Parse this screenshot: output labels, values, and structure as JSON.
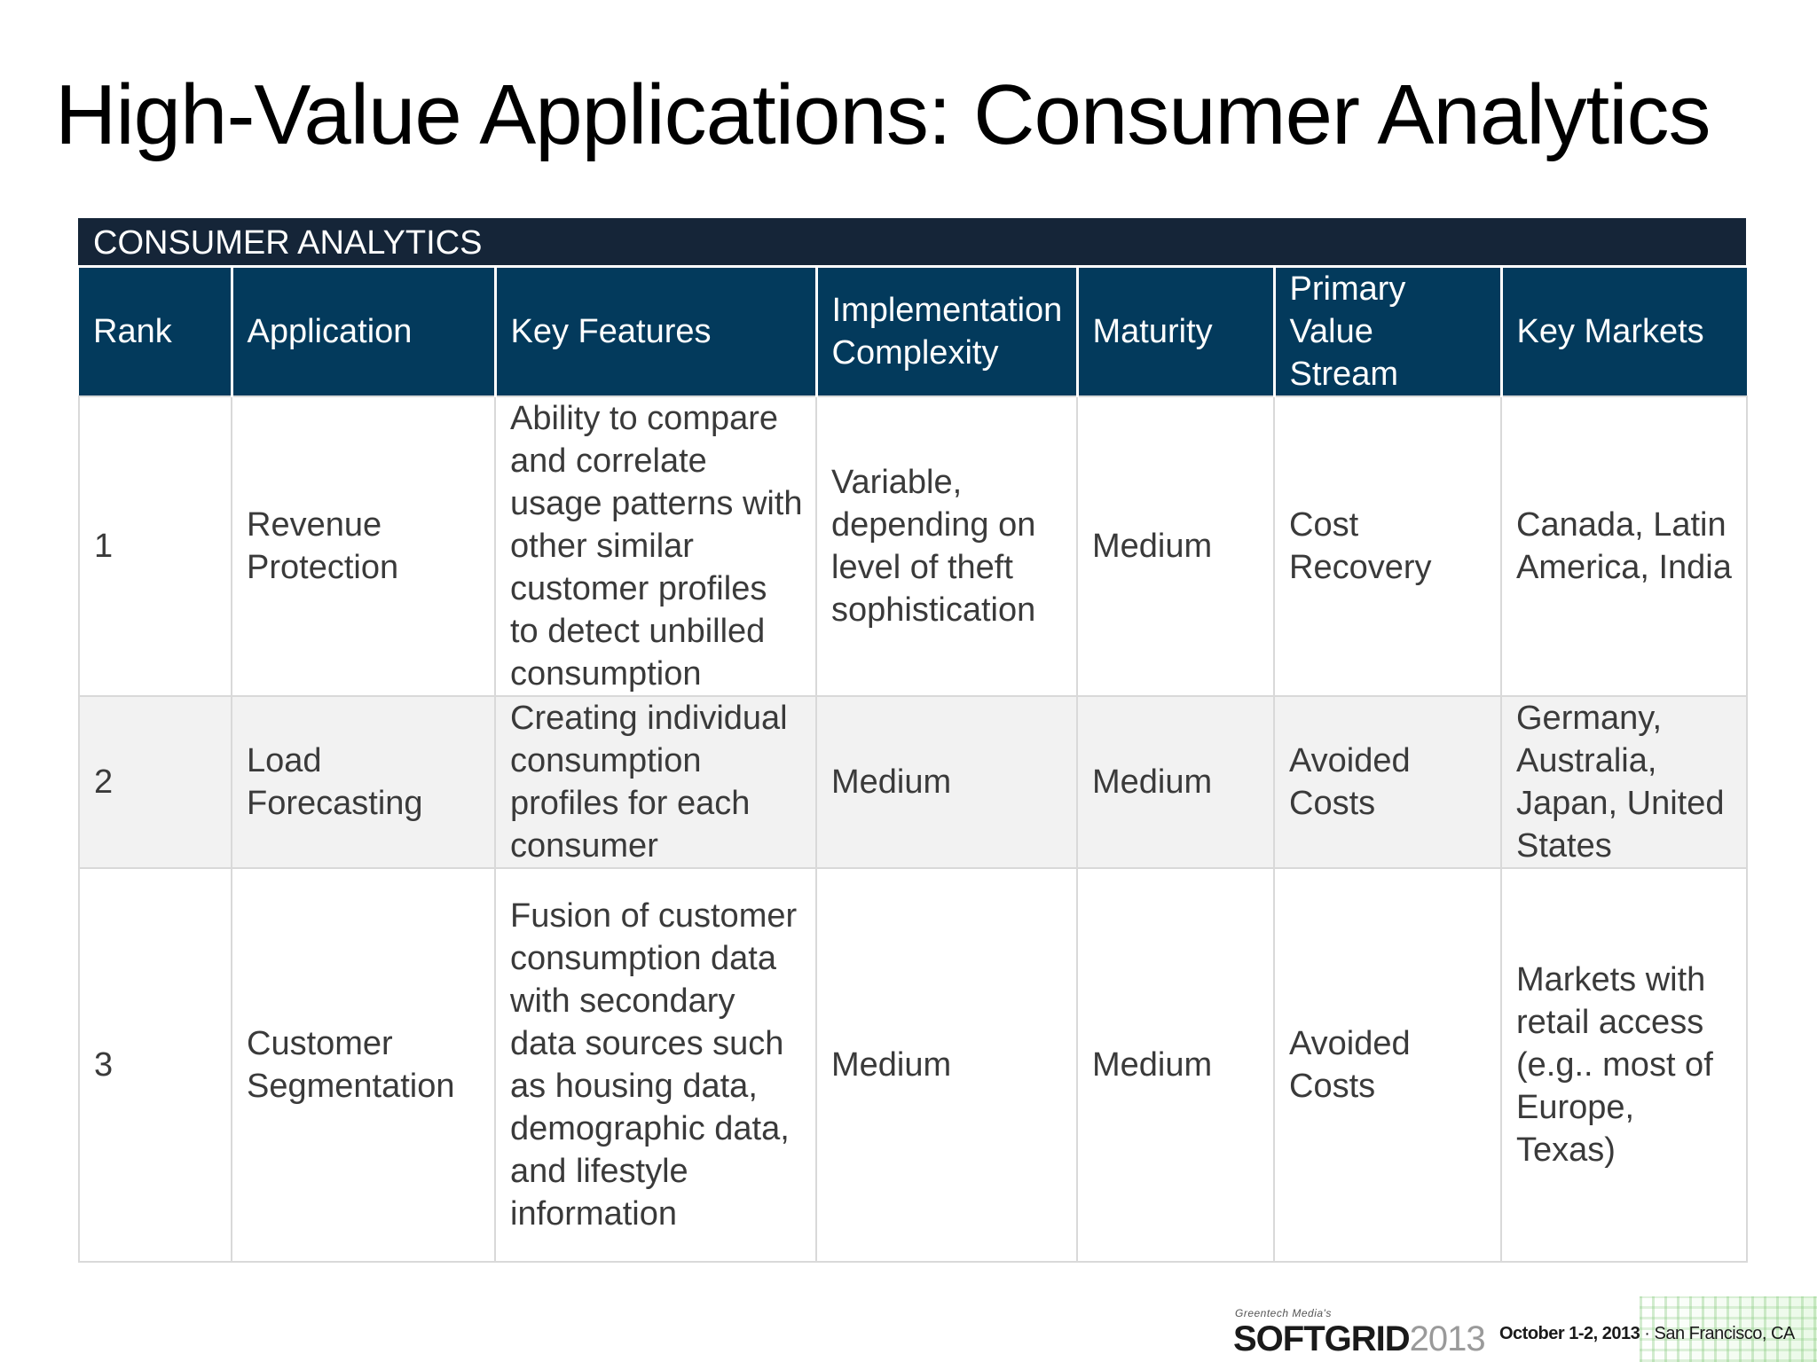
{
  "slide": {
    "title": "High-Value Applications: Consumer Analytics"
  },
  "table": {
    "banner": "CONSUMER ANALYTICS",
    "headers": {
      "rank": "Rank",
      "application": "Application",
      "key_features": "Key Features",
      "complexity": "Implementation Complexity",
      "maturity": "Maturity",
      "value_stream": "Primary Value Stream",
      "key_markets": "Key Markets"
    },
    "rows": [
      {
        "rank": "1",
        "application": "Revenue Protection",
        "key_features": "Ability to compare and correlate usage patterns with other similar customer profiles to detect unbilled consumption",
        "complexity": "Variable, depending on level of theft sophistication",
        "maturity": "Medium",
        "value_stream": "Cost Recovery",
        "key_markets": "Canada, Latin America, India"
      },
      {
        "rank": "2",
        "application": "Load Forecasting",
        "key_features": "Creating individual consumption profiles for each consumer",
        "complexity": "Medium",
        "maturity": "Medium",
        "value_stream": "Avoided Costs",
        "key_markets": "Germany, Australia, Japan, United States"
      },
      {
        "rank": "3",
        "application": "Customer Segmentation",
        "key_features": "Fusion of customer consumption data with secondary data sources such as housing data, demographic data, and lifestyle information",
        "complexity": "Medium",
        "maturity": "Medium",
        "value_stream": "Avoided Costs",
        "key_markets": "Markets with retail access (e.g.. most of Europe, Texas)"
      }
    ]
  },
  "footer": {
    "logo_tagline": "Greentech Media's",
    "logo_brand": "SOFTGRID",
    "logo_year": "2013",
    "event_dates": "October 1-2, 2013",
    "event_separator": " · ",
    "event_location": "San Francisco, CA"
  }
}
